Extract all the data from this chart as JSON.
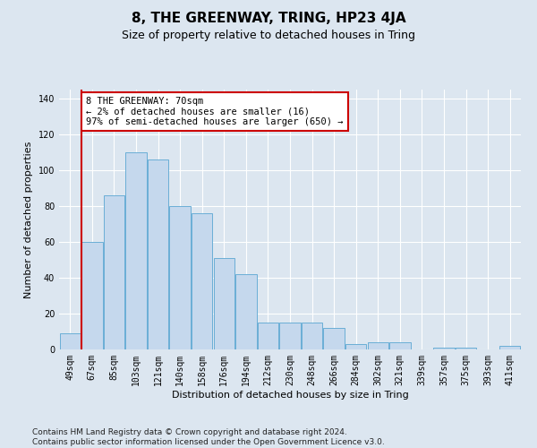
{
  "title": "8, THE GREENWAY, TRING, HP23 4JA",
  "subtitle": "Size of property relative to detached houses in Tring",
  "xlabel": "Distribution of detached houses by size in Tring",
  "ylabel": "Number of detached properties",
  "categories": [
    "49sqm",
    "67sqm",
    "85sqm",
    "103sqm",
    "121sqm",
    "140sqm",
    "158sqm",
    "176sqm",
    "194sqm",
    "212sqm",
    "230sqm",
    "248sqm",
    "266sqm",
    "284sqm",
    "302sqm",
    "321sqm",
    "339sqm",
    "357sqm",
    "375sqm",
    "393sqm",
    "411sqm"
  ],
  "values": [
    9,
    60,
    86,
    110,
    106,
    80,
    76,
    51,
    42,
    15,
    15,
    15,
    12,
    3,
    4,
    4,
    0,
    1,
    1,
    0,
    2
  ],
  "bar_color": "#c5d8ed",
  "bar_edge_color": "#6aaed6",
  "highlight_color": "#cc0000",
  "annotation_text": "8 THE GREENWAY: 70sqm\n← 2% of detached houses are smaller (16)\n97% of semi-detached houses are larger (650) →",
  "annotation_box_color": "#ffffff",
  "annotation_box_edge_color": "#cc0000",
  "vline_x_index": 1,
  "ylim": [
    0,
    145
  ],
  "yticks": [
    0,
    20,
    40,
    60,
    80,
    100,
    120,
    140
  ],
  "background_color": "#dce6f0",
  "plot_background_color": "#dce6f0",
  "grid_color": "#ffffff",
  "footer_text": "Contains HM Land Registry data © Crown copyright and database right 2024.\nContains public sector information licensed under the Open Government Licence v3.0.",
  "title_fontsize": 11,
  "subtitle_fontsize": 9,
  "label_fontsize": 8,
  "tick_fontsize": 7,
  "annotation_fontsize": 7.5,
  "footer_fontsize": 6.5
}
